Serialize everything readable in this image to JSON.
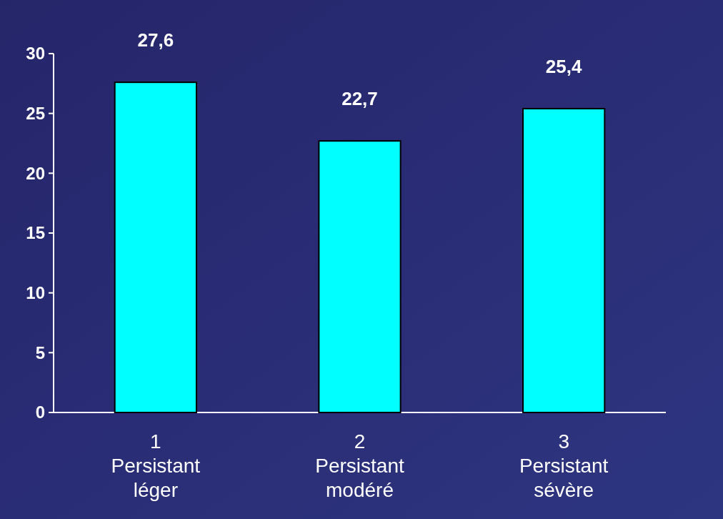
{
  "chart_data": {
    "type": "bar",
    "categories": [
      "1\nPersistant\nléger",
      "2\nPersistant\nmodéré",
      "3\nPersistant\nsévère"
    ],
    "values": [
      27.6,
      22.7,
      25.4
    ],
    "color": "#00ffff",
    "value_labels": [
      "27,6",
      "22,7",
      "25,4"
    ],
    "ylim": [
      0,
      30
    ],
    "yticks": [
      0,
      5,
      10,
      15,
      20,
      25,
      30
    ]
  }
}
